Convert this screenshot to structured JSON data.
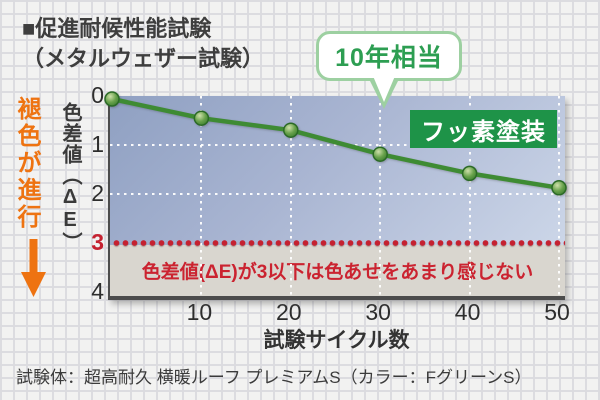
{
  "title": {
    "line1": "■促進耐候性能試験",
    "line2": "（メタルウェザー試験）"
  },
  "callout": {
    "label": "10年相当"
  },
  "left_label": {
    "text": "褪色が進行"
  },
  "axis": {
    "y_title_head": "色差値（",
    "y_title_sym": "ΔE",
    "y_title_tail": "）",
    "x_title": "試験サイクル数"
  },
  "caption": "試験体：超高耐久 横暖ルーフ プレミアムS（カラー：FグリーンS）",
  "chart_data": {
    "type": "line",
    "title": "促進耐候性能試験（メタルウェザー試験）",
    "xlabel": "試験サイクル数",
    "ylabel": "色差値（ΔE）",
    "x": [
      0,
      10,
      20,
      30,
      40,
      50
    ],
    "series": [
      {
        "name": "フッ素塗装",
        "values": [
          0,
          0.4,
          0.65,
          1.15,
          1.55,
          1.85
        ],
        "color": "#3e8b33"
      }
    ],
    "x_ticks": [
      10,
      20,
      30,
      40,
      50
    ],
    "y_ticks": [
      0,
      1,
      2,
      3,
      4
    ],
    "y_gridlines": [
      1,
      2
    ],
    "xlim": [
      0,
      50
    ],
    "ylim": [
      0,
      4
    ],
    "y_axis_inverted": true,
    "grid": "white-dotted",
    "legend_position": "top-right-inside",
    "threshold": {
      "value": 3,
      "style": "red-dotted-line",
      "note": "色差値(ΔE)が3以下は色あせをあまり感じない"
    },
    "annotation": {
      "text": "10年相当",
      "x": 30
    }
  },
  "colors": {
    "legend_green": "#1e9348",
    "line_green": "#3e8b33",
    "callout_green": "#2d9e52",
    "callout_border": "#9dd0a1",
    "orange": "#ee7311",
    "red": "#c52130",
    "plot_gradient_top": "#8fa0c2",
    "plot_gradient_bottom": "#ccd6e8",
    "safe_band_gray": "#d9d6cf"
  }
}
